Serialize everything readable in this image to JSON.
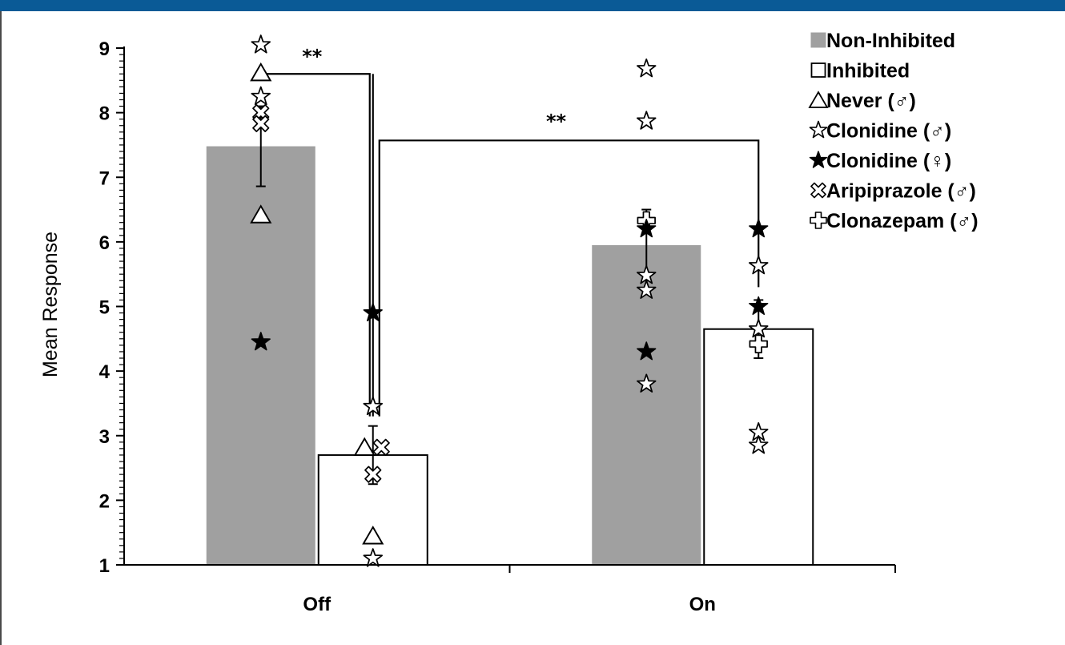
{
  "colors": {
    "top_bar": "#0a5a96",
    "non_inhibited": "#a0a0a0",
    "inhibited": "#ffffff",
    "stroke": "#000000"
  },
  "chart_data": {
    "type": "bar",
    "title": "",
    "xlabel": "",
    "ylabel": "Mean Response",
    "ylim": [
      1,
      9
    ],
    "yticks": [
      "1",
      "2",
      "3",
      "4",
      "5",
      "6",
      "7",
      "8",
      "9"
    ],
    "grid": false,
    "legend_position": "top-right",
    "categories": [
      "Off",
      "On"
    ],
    "series": [
      {
        "name": "Non-Inhibited",
        "values": [
          7.48,
          5.95
        ],
        "errors": [
          0.62,
          0.55
        ]
      },
      {
        "name": "Inhibited",
        "values": [
          2.7,
          4.65
        ],
        "errors": [
          0.45,
          0.45
        ]
      }
    ],
    "legend": [
      {
        "marker": "filled-square",
        "label": "Non-Inhibited"
      },
      {
        "marker": "open-square",
        "label": "Inhibited"
      },
      {
        "marker": "open-triangle",
        "label": "Never (♂)"
      },
      {
        "marker": "open-star",
        "label": "Clonidine (♂)"
      },
      {
        "marker": "filled-star",
        "label": "Clonidine (♀)"
      },
      {
        "marker": "open-x",
        "label": "Aripiprazole (♂)"
      },
      {
        "marker": "open-cross",
        "label": "Clonazepam (♂)"
      }
    ],
    "points": [
      {
        "category": "Off",
        "series": "Non-Inhibited",
        "marker": "open-star",
        "y": 9.05
      },
      {
        "category": "Off",
        "series": "Non-Inhibited",
        "marker": "open-triangle",
        "y": 8.62
      },
      {
        "category": "Off",
        "series": "Non-Inhibited",
        "marker": "open-star",
        "y": 8.25
      },
      {
        "category": "Off",
        "series": "Non-Inhibited",
        "marker": "open-x",
        "y": 8.0
      },
      {
        "category": "Off",
        "series": "Non-Inhibited",
        "marker": "open-x",
        "y": 7.83
      },
      {
        "category": "Off",
        "series": "Non-Inhibited",
        "marker": "open-triangle",
        "y": 6.42
      },
      {
        "category": "Off",
        "series": "Non-Inhibited",
        "marker": "filled-star",
        "y": 4.45
      },
      {
        "category": "Off",
        "series": "Inhibited",
        "marker": "filled-star",
        "y": 4.9
      },
      {
        "category": "Off",
        "series": "Inhibited",
        "marker": "open-star",
        "y": 3.45
      },
      {
        "category": "Off",
        "series": "Inhibited",
        "marker": "open-triangle",
        "y": 2.82,
        "dx": -0.35
      },
      {
        "category": "Off",
        "series": "Inhibited",
        "marker": "open-x",
        "y": 2.82,
        "dx": 0.35
      },
      {
        "category": "Off",
        "series": "Inhibited",
        "marker": "open-x",
        "y": 2.4
      },
      {
        "category": "Off",
        "series": "Inhibited",
        "marker": "open-triangle",
        "y": 1.45
      },
      {
        "category": "Off",
        "series": "Inhibited",
        "marker": "open-star",
        "y": 1.1
      },
      {
        "category": "On",
        "series": "Non-Inhibited",
        "marker": "open-star",
        "y": 8.68
      },
      {
        "category": "On",
        "series": "Non-Inhibited",
        "marker": "open-star",
        "y": 7.87
      },
      {
        "category": "On",
        "series": "Non-Inhibited",
        "marker": "open-cross",
        "y": 6.33
      },
      {
        "category": "On",
        "series": "Non-Inhibited",
        "marker": "filled-star",
        "y": 6.2
      },
      {
        "category": "On",
        "series": "Non-Inhibited",
        "marker": "open-star",
        "y": 5.48
      },
      {
        "category": "On",
        "series": "Non-Inhibited",
        "marker": "open-star",
        "y": 5.25
      },
      {
        "category": "On",
        "series": "Non-Inhibited",
        "marker": "filled-star",
        "y": 4.3
      },
      {
        "category": "On",
        "series": "Non-Inhibited",
        "marker": "open-star",
        "y": 3.8
      },
      {
        "category": "On",
        "series": "Inhibited",
        "marker": "filled-star",
        "y": 6.2
      },
      {
        "category": "On",
        "series": "Inhibited",
        "marker": "open-star",
        "y": 5.63
      },
      {
        "category": "On",
        "series": "Inhibited",
        "marker": "filled-star",
        "y": 5.0
      },
      {
        "category": "On",
        "series": "Inhibited",
        "marker": "open-star",
        "y": 4.65
      },
      {
        "category": "On",
        "series": "Inhibited",
        "marker": "open-cross",
        "y": 4.42
      },
      {
        "category": "On",
        "series": "Inhibited",
        "marker": "open-star",
        "y": 3.05
      },
      {
        "category": "On",
        "series": "Inhibited",
        "marker": "open-star",
        "y": 2.85
      }
    ],
    "significance": [
      {
        "label": "**",
        "from": {
          "category": "Off",
          "series": "Non-Inhibited"
        },
        "to": {
          "category": "Off",
          "series": "Inhibited"
        },
        "y": 8.6,
        "to_y": 3.3
      },
      {
        "label": "**",
        "from": {
          "category": "Off",
          "series": "Inhibited"
        },
        "to": {
          "category": "On",
          "series": "Inhibited"
        },
        "y": 7.57,
        "from_y": 3.3,
        "to_y": 5.3
      }
    ]
  }
}
